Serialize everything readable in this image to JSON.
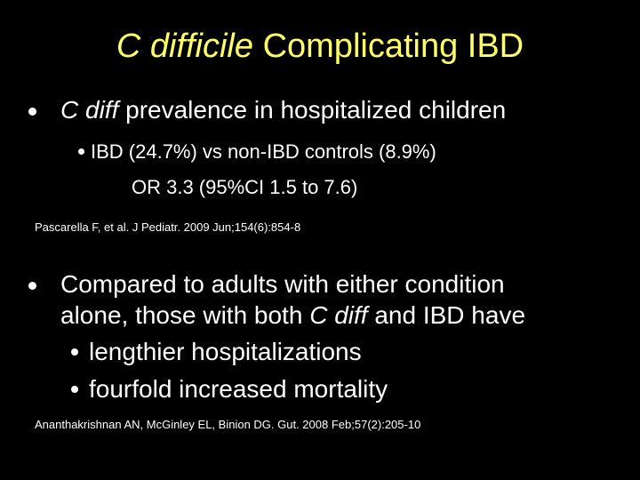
{
  "title": {
    "italic": "C difficile",
    "rest": " Complicating IBD"
  },
  "section1": {
    "bullet": {
      "italic": "C diff",
      "rest": " prevalence in hospitalized children"
    },
    "sub": {
      "line1": "IBD (24.7%) vs non-IBD controls (8.9%)",
      "line2": "OR 3.3 (95%CI  1.5 to 7.6)"
    },
    "reference": "Pascarella F, et al. J Pediatr. 2009 Jun;154(6):854-8"
  },
  "section2": {
    "bullet": {
      "line1": "Compared to adults with either condition",
      "line2_pre": "alone, those with both ",
      "line2_italic": "C diff",
      "line2_post": " and IBD have"
    },
    "subs": [
      "lengthier hospitalizations",
      "fourfold increased mortality"
    ],
    "reference": "Ananthakrishnan AN, McGinley EL, Binion DG. Gut. 2008 Feb;57(2):205-10"
  },
  "colors": {
    "background": "#000000",
    "title": "#ffff66",
    "text": "#ffffff"
  }
}
